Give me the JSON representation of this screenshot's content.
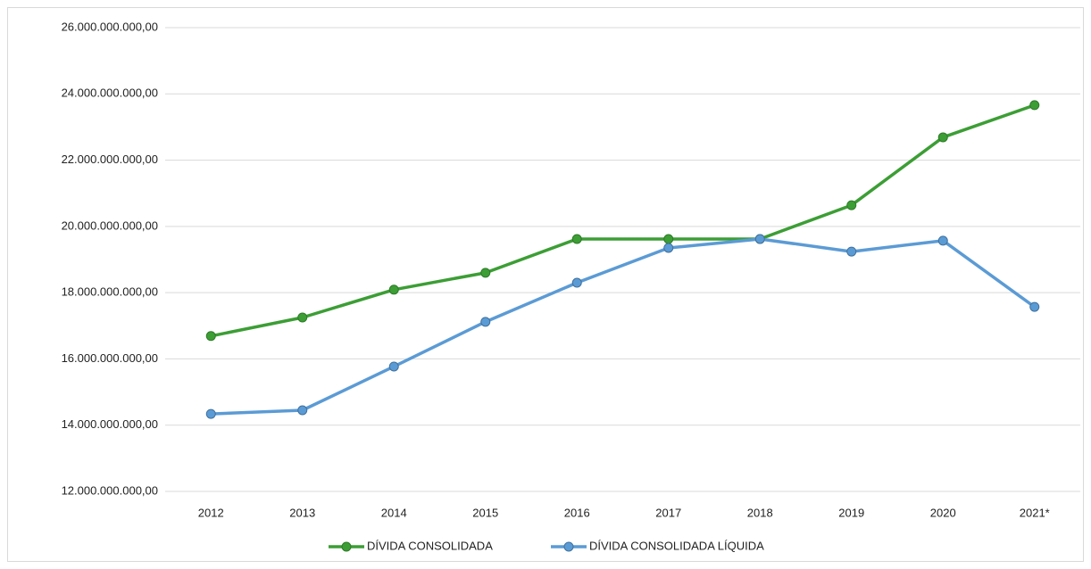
{
  "chart_data": {
    "type": "line",
    "categories": [
      "2012",
      "2013",
      "2014",
      "2015",
      "2016",
      "2017",
      "2018",
      "2019",
      "2020",
      "2021*"
    ],
    "series": [
      {
        "name": "DÍVIDA CONSOLIDADA",
        "color": "#3c9e35",
        "values": [
          16690000000,
          17250000000,
          18090000000,
          18600000000,
          19620000000,
          19620000000,
          19620000000,
          20640000000,
          22690000000,
          23660000000
        ]
      },
      {
        "name": "DÍVIDA CONSOLIDADA LÍQUIDA",
        "color": "#5b9bd5",
        "values": [
          14340000000,
          14450000000,
          15770000000,
          17120000000,
          18300000000,
          19350000000,
          19620000000,
          19240000000,
          19570000000,
          17570000000
        ]
      }
    ],
    "ylim": [
      12000000000,
      26000000000
    ],
    "yticks": [
      {
        "value": 12000000000,
        "label": "12.000.000.000,00"
      },
      {
        "value": 14000000000,
        "label": "14.000.000.000,00"
      },
      {
        "value": 16000000000,
        "label": "16.000.000.000,00"
      },
      {
        "value": 18000000000,
        "label": "18.000.000.000,00"
      },
      {
        "value": 20000000000,
        "label": "20.000.000.000,00"
      },
      {
        "value": 22000000000,
        "label": "22.000.000.000,00"
      },
      {
        "value": 24000000000,
        "label": "24.000.000.000,00"
      },
      {
        "value": 26000000000,
        "label": "26.000.000.000,00"
      }
    ],
    "grid": true,
    "legend": "bottom"
  }
}
